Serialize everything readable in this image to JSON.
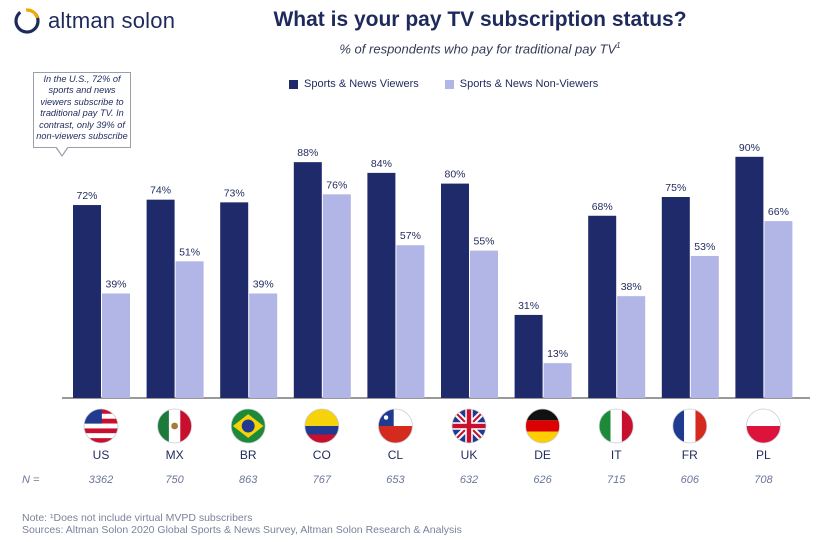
{
  "brand": {
    "name": "altman solon",
    "logo_icon": "altman-solon-logo-icon"
  },
  "title": "What is your pay TV subscription status?",
  "subtitle": "% of respondents who pay for traditional pay TV",
  "subtitle_sup": "1",
  "callout": "In the U.S., 72% of sports and news viewers subscribe to traditional pay TV. In contrast, only 39% of non-viewers subscribe",
  "n_label": "N =",
  "footnote": "Note: ¹Does not include virtual MVPD subscribers",
  "sources": "Sources: Altman Solon 2020 Global Sports & News Survey, Altman Solon Research & Analysis",
  "colors": {
    "viewers": "#1f2a6b",
    "non_viewers": "#b1b6e6",
    "axis": "#333333"
  },
  "chart_data": {
    "type": "bar",
    "title": "What is your pay TV subscription status?",
    "subtitle": "% of respondents who pay for traditional pay TV",
    "categories": [
      "US",
      "MX",
      "BR",
      "CO",
      "CL",
      "UK",
      "DE",
      "IT",
      "FR",
      "PL"
    ],
    "sample_sizes": [
      "3362",
      "750",
      "863",
      "767",
      "653",
      "632",
      "626",
      "715",
      "606",
      "708"
    ],
    "flags": [
      "us-flag-icon",
      "mx-flag-icon",
      "br-flag-icon",
      "co-flag-icon",
      "cl-flag-icon",
      "uk-flag-icon",
      "de-flag-icon",
      "it-flag-icon",
      "fr-flag-icon",
      "pl-flag-icon"
    ],
    "series": [
      {
        "name": "Sports & News Viewers",
        "values": [
          72,
          74,
          73,
          88,
          84,
          80,
          31,
          68,
          75,
          90
        ],
        "labels": [
          "72%",
          "74%",
          "73%",
          "88%",
          "84%",
          "80%",
          "31%",
          "68%",
          "75%",
          "90%"
        ]
      },
      {
        "name": "Sports & News Non-Viewers",
        "values": [
          39,
          51,
          39,
          76,
          57,
          55,
          13,
          38,
          53,
          66
        ],
        "labels": [
          "39%",
          "51%",
          "39%",
          "76%",
          "57%",
          "55%",
          "13%",
          "38%",
          "53%",
          "66%"
        ]
      }
    ],
    "ylim": [
      0,
      100
    ],
    "grid": false,
    "legend": "top"
  }
}
